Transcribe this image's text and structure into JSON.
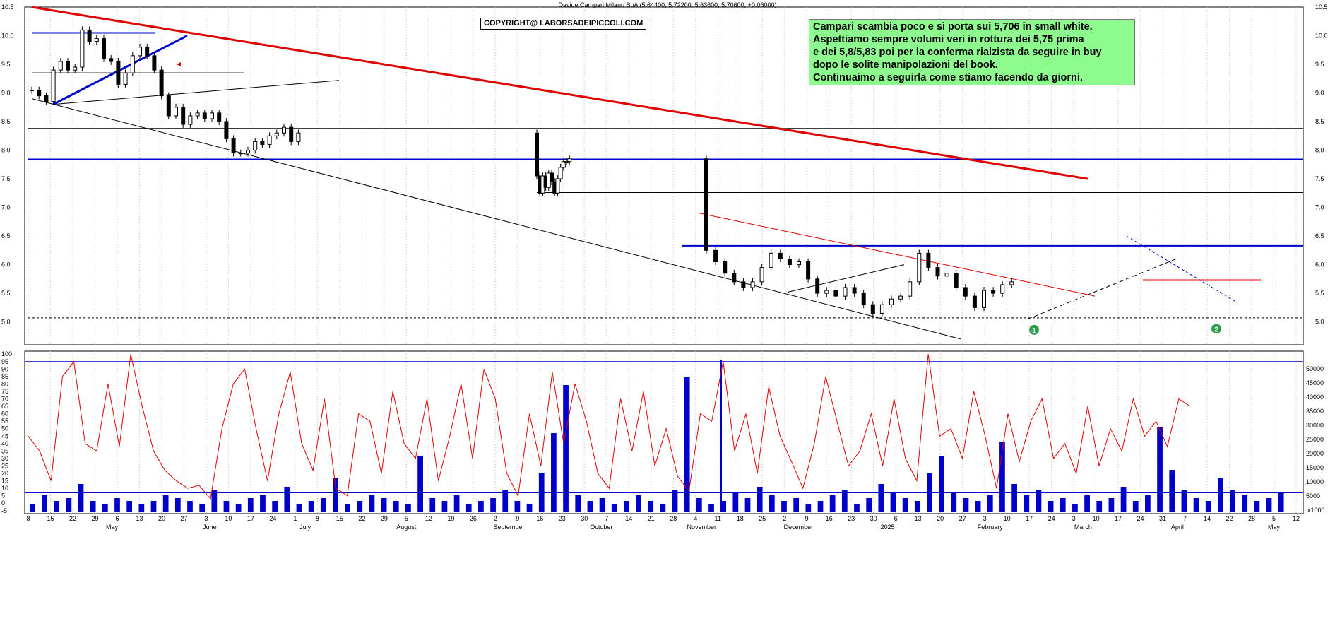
{
  "chart_title": "Davide Campari Milano SpA (5.64400, 5.72200, 5.63600, 5.70600, +0.06000)",
  "copyright": "COPYRIGHT@ LABORSADEIPICCOLI.COM",
  "note_lines": [
    "Campari scambia poco e si porta sui 5,706 in small white.",
    "Aspettiamo sempre volumi veri in rottura dei 5,75 prima",
    "e dei 5,8/5,83 poi per la conferma rialzista da seguire in buy",
    "dopo le solite manipolazioni del book.",
    "Continuaimo a seguirla come stiamo facendo da giorni."
  ],
  "markers": [
    "1",
    "2"
  ],
  "colors": {
    "trend_red": "#e00000",
    "support_blue": "#0000cc",
    "osc_red": "#e00000",
    "volume_blue": "#0000cc",
    "note_bg": "#8dfb8d",
    "marker_green": "#2e9e4e"
  },
  "chart_data": [
    {
      "type": "candlestick",
      "ylim": [
        4.6,
        10.5
      ],
      "yticks": [
        "10.5",
        "10.0",
        "9.5",
        "9.0",
        "8.5",
        "8.0",
        "7.5",
        "7.0",
        "6.5",
        "6.0",
        "5.5",
        "5.0"
      ],
      "x_day_labels": [
        "8",
        "15",
        "22",
        "29",
        "6",
        "13",
        "20",
        "27",
        "3",
        "10",
        "17",
        "24",
        "1",
        "8",
        "15",
        "22",
        "29",
        "5",
        "12",
        "19",
        "26",
        "2",
        "9",
        "16",
        "23",
        "30",
        "7",
        "14",
        "21",
        "28",
        "4",
        "11",
        "18",
        "25",
        "2",
        "9",
        "16",
        "23",
        "30",
        "6",
        "13",
        "20",
        "27",
        "3",
        "10",
        "17",
        "24",
        "3",
        "10",
        "17",
        "24",
        "31",
        "7",
        "14",
        "22",
        "28",
        "5",
        "12"
      ],
      "x_month_labels": [
        "May",
        "June",
        "July",
        "August",
        "September",
        "October",
        "November",
        "December",
        "2025",
        "February",
        "March",
        "April",
        "May"
      ],
      "price_path": [
        9.05,
        8.95,
        8.85,
        9.4,
        9.55,
        9.4,
        9.45,
        10.1,
        9.9,
        9.95,
        9.6,
        9.55,
        9.15,
        9.35,
        9.65,
        9.8,
        9.65,
        9.4,
        8.95,
        8.6,
        8.75,
        8.45,
        8.6,
        8.65,
        8.55,
        8.65,
        8.5,
        8.2,
        7.95,
        7.95,
        8.0,
        8.15,
        8.1,
        8.25,
        8.3,
        8.4,
        8.15,
        8.3,
        7.55,
        7.25,
        7.55,
        7.35,
        7.6,
        7.45,
        7.25,
        7.5,
        7.7,
        7.8,
        7.8,
        7.85,
        6.25,
        6.05,
        5.85,
        5.7,
        5.6,
        5.7,
        5.95,
        6.2,
        6.1,
        6.0,
        6.05,
        5.75,
        5.5,
        5.55,
        5.45,
        5.6,
        5.5,
        5.3,
        5.15,
        5.3,
        5.4,
        5.45,
        5.7,
        6.2,
        5.95,
        5.8,
        5.85,
        5.6,
        5.45,
        5.25,
        5.55,
        5.5,
        5.65,
        5.7
      ],
      "levels": [
        8.38,
        7.84,
        7.26,
        6.33,
        5.73,
        5.07
      ]
    },
    {
      "type": "line",
      "series": [
        {
          "values": [
            45,
            35,
            15,
            85,
            95,
            40,
            35,
            80,
            38,
            100,
            65,
            35,
            22,
            15,
            10,
            12,
            3,
            50,
            80,
            90,
            50,
            15,
            60,
            88,
            40,
            22,
            70,
            10,
            5,
            60,
            55,
            20,
            75,
            40,
            30,
            70,
            15,
            45,
            80,
            30,
            90,
            70,
            20,
            5,
            60,
            25,
            88,
            40,
            80,
            55,
            20,
            10,
            70,
            35,
            75,
            25,
            50,
            18,
            8,
            60,
            55,
            95,
            35,
            60,
            20,
            78,
            45,
            28,
            10,
            40,
            85,
            55,
            25,
            35,
            60,
            25,
            70,
            30,
            15,
            100,
            45,
            50,
            30,
            75,
            45,
            10,
            60,
            28,
            55,
            70,
            30,
            40,
            20,
            65,
            25,
            50,
            35,
            70,
            45,
            55,
            38,
            70,
            65
          ]
        }
      ],
      "yticks": [
        "100",
        "95",
        "90",
        "85",
        "80",
        "75",
        "70",
        "65",
        "60",
        "55",
        "50",
        "45",
        "40",
        "35",
        "30",
        "25",
        "20",
        "15",
        "10",
        "5",
        "0",
        "-5"
      ],
      "ylim": [
        -7,
        102
      ]
    },
    {
      "type": "bar",
      "series": [
        {
          "values": [
            3,
            6,
            4,
            5,
            10,
            4,
            3,
            5,
            4,
            3,
            4,
            6,
            5,
            4,
            3,
            8,
            4,
            3,
            5,
            6,
            4,
            9,
            3,
            4,
            5,
            12,
            3,
            4,
            6,
            5,
            4,
            3,
            20,
            5,
            4,
            6,
            3,
            4,
            5,
            8,
            4,
            3,
            14,
            28,
            45,
            6,
            4,
            5,
            3,
            4,
            6,
            4,
            3,
            8,
            48,
            5,
            3,
            4,
            7,
            5,
            9,
            6,
            4,
            5,
            3,
            4,
            6,
            8,
            3,
            5,
            10,
            7,
            5,
            4,
            14,
            20,
            7,
            5,
            4,
            6,
            25,
            10,
            6,
            8,
            4,
            5,
            3,
            6,
            4,
            5,
            9,
            4,
            6,
            30,
            15,
            8,
            5,
            4,
            12,
            8,
            6,
            4,
            5,
            7
          ]
        }
      ],
      "yticks": [
        "50000",
        "45000",
        "40000",
        "35000",
        "30000",
        "25000",
        "20000",
        "15000",
        "10000",
        "5000"
      ],
      "ylim": [
        0,
        50000
      ],
      "scale_label": "x1000"
    }
  ]
}
